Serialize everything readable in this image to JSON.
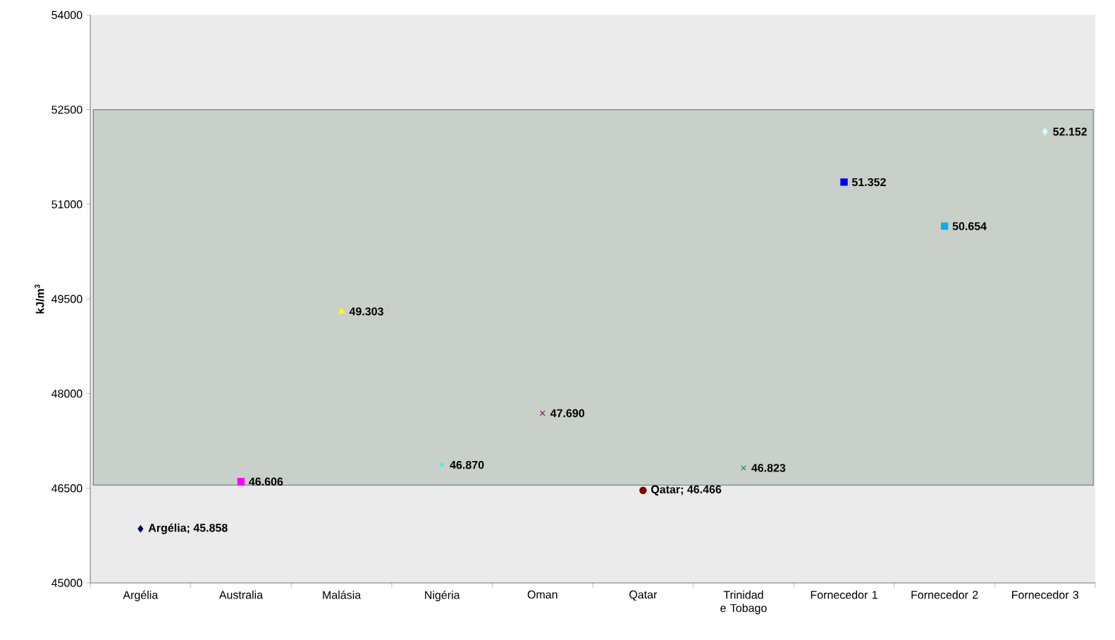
{
  "chart_data": {
    "type": "scatter",
    "ylabel": "kJ/m$^{3}$",
    "categories": [
      "Argélia",
      "Australia",
      "Malásia",
      "Nigéria",
      "Oman",
      "Qatar",
      "Trinidad e Tobago",
      "Fornecedor 1",
      "Fornecedor 2",
      "Fornecedor 3"
    ],
    "ylim": [
      45000,
      54000
    ],
    "yticks": [
      45000,
      46500,
      48000,
      49500,
      51000,
      52500,
      54000
    ],
    "bands": [
      {
        "axis": "y",
        "from": 46550,
        "to": 52500,
        "color": "#c9d0c9"
      }
    ],
    "series": [
      {
        "color": "#000080",
        "marker": "diamond",
        "values": [
          45858,
          null,
          null,
          null,
          null,
          null,
          null,
          null,
          null,
          null
        ],
        "value_labels": [
          "Argélia; 45.858",
          null,
          null,
          null,
          null,
          null,
          null,
          null,
          null,
          null
        ]
      },
      {
        "color": "#ff00ff",
        "marker": "square",
        "values": [
          null,
          46606,
          null,
          null,
          null,
          null,
          null,
          null,
          null,
          null
        ],
        "value_labels": [
          null,
          "46.606",
          null,
          null,
          null,
          null,
          null,
          null,
          null,
          null
        ]
      },
      {
        "color": "#ffff00",
        "marker": "triangle",
        "values": [
          null,
          null,
          49303,
          null,
          null,
          null,
          null,
          null,
          null,
          null
        ],
        "value_labels": [
          null,
          null,
          "49.303",
          null,
          null,
          null,
          null,
          null,
          null,
          null
        ]
      },
      {
        "color": "#00ffff",
        "marker": "cross",
        "values": [
          null,
          null,
          null,
          46870,
          null,
          null,
          null,
          null,
          null,
          null
        ],
        "value_labels": [
          null,
          null,
          null,
          "46.870",
          null,
          null,
          null,
          null,
          null,
          null
        ]
      },
      {
        "color": "#800080",
        "marker": "cross",
        "values": [
          null,
          null,
          null,
          null,
          47690,
          null,
          null,
          null,
          null,
          null
        ],
        "value_labels": [
          null,
          null,
          null,
          null,
          "47.690",
          null,
          null,
          null,
          null,
          null
        ]
      },
      {
        "color": "#800000",
        "marker": "circle",
        "values": [
          null,
          null,
          null,
          null,
          null,
          46466,
          null,
          null,
          null,
          null
        ],
        "value_labels": [
          null,
          null,
          null,
          null,
          null,
          "Qatar; 46.466",
          null,
          null,
          null,
          null
        ]
      },
      {
        "color": "#008080",
        "marker": "cross",
        "values": [
          null,
          null,
          null,
          null,
          null,
          null,
          46823,
          null,
          null,
          null
        ],
        "value_labels": [
          null,
          null,
          null,
          null,
          null,
          null,
          "46.823",
          null,
          null,
          null
        ]
      },
      {
        "color": "#0000ff",
        "marker": "square",
        "values": [
          null,
          null,
          null,
          null,
          null,
          null,
          null,
          51352,
          null,
          null
        ],
        "value_labels": [
          null,
          null,
          null,
          null,
          null,
          null,
          null,
          "51.352",
          null,
          null
        ]
      },
      {
        "color": "#00b0f0",
        "marker": "square",
        "values": [
          null,
          null,
          null,
          null,
          null,
          null,
          null,
          null,
          50654,
          null
        ],
        "value_labels": [
          null,
          null,
          null,
          null,
          null,
          null,
          null,
          null,
          "50.654",
          null
        ]
      },
      {
        "color": "#ccffff",
        "marker": "diamond",
        "values": [
          null,
          null,
          null,
          null,
          null,
          null,
          null,
          null,
          null,
          52152
        ],
        "value_labels": [
          null,
          null,
          null,
          null,
          null,
          null,
          null,
          null,
          null,
          "52.152"
        ]
      }
    ]
  }
}
